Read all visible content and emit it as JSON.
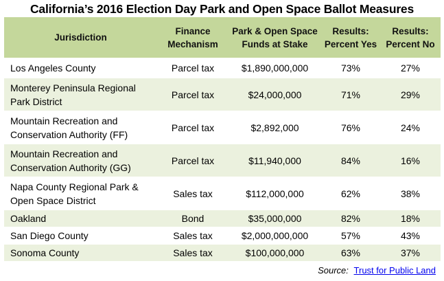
{
  "title": "California’s 2016 Election Day Park and Open Space Ballot Measures",
  "columns": {
    "jurisdiction": "Jurisdiction",
    "mechanism": "Finance Mechanism",
    "funds": "Park & Open Space Funds at Stake",
    "yes": "Results: Percent Yes",
    "no": "Results: Percent No"
  },
  "rows": [
    {
      "jurisdiction": "Los Angeles County",
      "mechanism": "Parcel tax",
      "funds": "$1,890,000,000",
      "yes": "73%",
      "no": "27%"
    },
    {
      "jurisdiction": "Monterey Peninsula Regional Park District",
      "mechanism": "Parcel tax",
      "funds": "$24,000,000",
      "yes": "71%",
      "no": "29%"
    },
    {
      "jurisdiction": "Mountain Recreation and Conservation Authority (FF)",
      "mechanism": "Parcel tax",
      "funds": "$2,892,000",
      "yes": "76%",
      "no": "24%"
    },
    {
      "jurisdiction": "Mountain Recreation and Conservation Authority (GG)",
      "mechanism": "Parcel tax",
      "funds": "$11,940,000",
      "yes": "84%",
      "no": "16%"
    },
    {
      "jurisdiction": "Napa County Regional Park & Open Space District",
      "mechanism": "Sales tax",
      "funds": "$112,000,000",
      "yes": "62%",
      "no": "38%"
    },
    {
      "jurisdiction": "Oakland",
      "mechanism": "Bond",
      "funds": "$35,000,000",
      "yes": "82%",
      "no": "18%"
    },
    {
      "jurisdiction": "San Diego County",
      "mechanism": "Sales tax",
      "funds": "$2,000,000,000",
      "yes": "57%",
      "no": "43%"
    },
    {
      "jurisdiction": "Sonoma County",
      "mechanism": "Sales tax",
      "funds": "$100,000,000",
      "yes": "63%",
      "no": "37%"
    }
  ],
  "source": {
    "label": "Source:",
    "link_text": "Trust  for Public Land"
  },
  "colors": {
    "header_bg": "#c4d79b",
    "stripe_bg": "#ebf1de",
    "link": "#0000ee"
  }
}
